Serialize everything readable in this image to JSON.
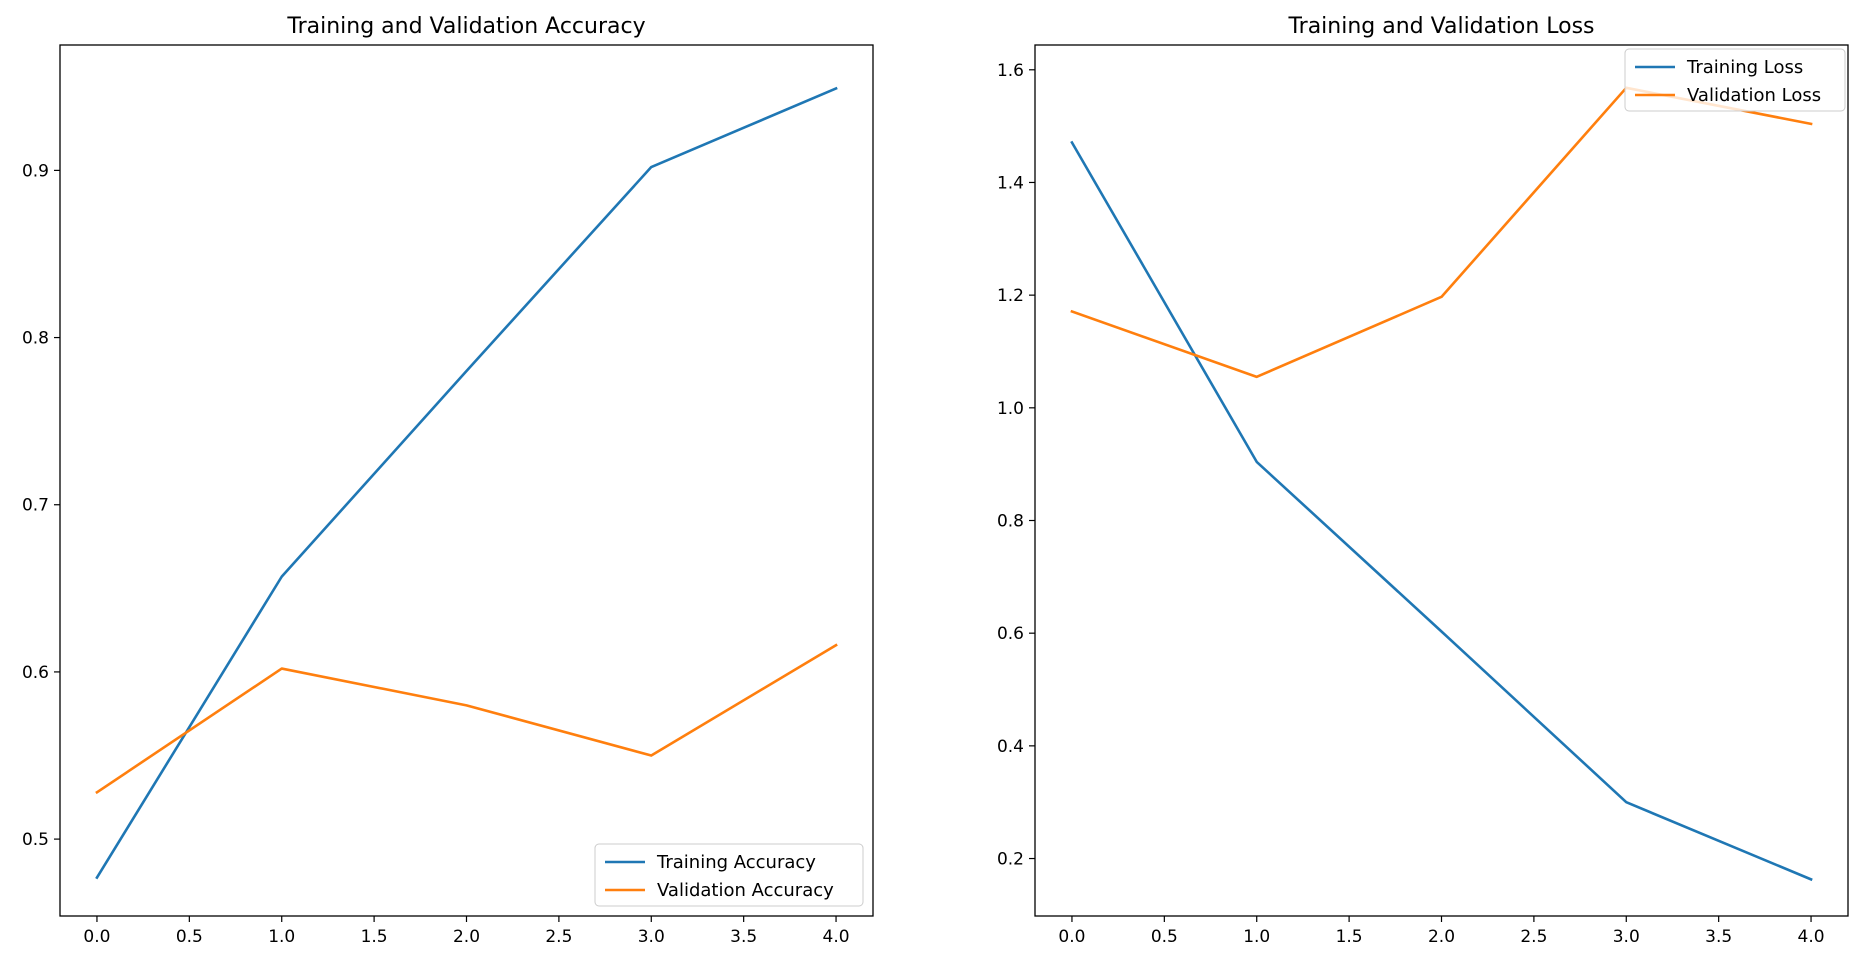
{
  "chart_data": [
    {
      "type": "line",
      "title": "Training and Validation Accuracy",
      "xlabel": "",
      "ylabel": "",
      "x": [
        0,
        1,
        2,
        3,
        4
      ],
      "series": [
        {
          "name": "Training Accuracy",
          "color": "#1f77b4",
          "values": [
            0.477,
            0.657,
            0.78,
            0.902,
            0.949
          ]
        },
        {
          "name": "Validation Accuracy",
          "color": "#ff7f0e",
          "values": [
            0.528,
            0.602,
            0.58,
            0.55,
            0.616
          ]
        }
      ],
      "xlim": [
        -0.2,
        4.2
      ],
      "ylim": [
        0.454,
        0.975
      ],
      "xticks": [
        0.0,
        0.5,
        1.0,
        1.5,
        2.0,
        2.5,
        3.0,
        3.5,
        4.0
      ],
      "xtick_labels": [
        "0.0",
        "0.5",
        "1.0",
        "1.5",
        "2.0",
        "2.5",
        "3.0",
        "3.5",
        "4.0"
      ],
      "yticks": [
        0.5,
        0.6,
        0.7,
        0.8,
        0.9
      ],
      "ytick_labels": [
        "0.5",
        "0.6",
        "0.7",
        "0.8",
        "0.9"
      ],
      "grid": false,
      "legend": "lower-right"
    },
    {
      "type": "line",
      "title": "Training and Validation Loss",
      "xlabel": "",
      "ylabel": "",
      "x": [
        0,
        1,
        2,
        3,
        4
      ],
      "series": [
        {
          "name": "Training Loss",
          "color": "#1f77b4",
          "values": [
            1.471,
            0.904,
            0.603,
            0.3,
            0.163
          ]
        },
        {
          "name": "Validation Loss",
          "color": "#ff7f0e",
          "values": [
            1.171,
            1.055,
            1.197,
            1.568,
            1.504
          ]
        }
      ],
      "xlim": [
        -0.2,
        4.2
      ],
      "ylim": [
        0.098,
        1.644
      ],
      "xticks": [
        0.0,
        0.5,
        1.0,
        1.5,
        2.0,
        2.5,
        3.0,
        3.5,
        4.0
      ],
      "xtick_labels": [
        "0.0",
        "0.5",
        "1.0",
        "1.5",
        "2.0",
        "2.5",
        "3.0",
        "3.5",
        "4.0"
      ],
      "yticks": [
        0.2,
        0.4,
        0.6,
        0.8,
        1.0,
        1.2,
        1.4,
        1.6
      ],
      "ytick_labels": [
        "0.2",
        "0.4",
        "0.6",
        "0.8",
        "1.0",
        "1.2",
        "1.4",
        "1.6"
      ],
      "grid": false,
      "legend": "upper-right"
    }
  ]
}
